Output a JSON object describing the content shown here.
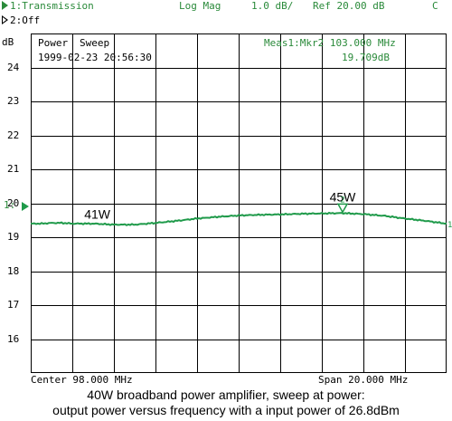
{
  "header": {
    "channel1": "1:Transmission",
    "format": "Log Mag",
    "scale": "1.0 dB/",
    "ref": "Ref  20.00 dB",
    "flag": "C",
    "channel2": "2:Off",
    "unit": "dB"
  },
  "panel": {
    "mode_power": "Power",
    "mode_sweep": "Sweep",
    "datetime": "1999-02-23 20:56:30",
    "marker_readout": "Meas1:Mkr2  103.000 MHz",
    "marker_value": "19.709dB"
  },
  "footer": {
    "center": "Center 98.000 MHz",
    "span": "Span  20.000 MHz"
  },
  "caption": {
    "line1": "40W broadband power amplifier, sweep at power:",
    "line2": "output power versus frequency with a input power of 26.8dBm"
  },
  "colors": {
    "trace": "#1f9a4a",
    "grid": "#000000",
    "header_text": "#2a8a3a"
  },
  "chart_data": {
    "type": "line",
    "xlabel": "",
    "ylabel": "dB",
    "xlim": [
      88,
      108
    ],
    "ylim": [
      15,
      25
    ],
    "yticks": [
      24,
      23,
      22,
      21,
      20,
      19,
      18,
      17,
      16
    ],
    "grid": true,
    "ref_level_label": "1:",
    "ref_level": 19.9,
    "series": [
      {
        "x": [
          88,
          88.5,
          89,
          89.5,
          90,
          91,
          92,
          93,
          94,
          95,
          96,
          97,
          98,
          99,
          100,
          101,
          102,
          103,
          104,
          105,
          106,
          107,
          108
        ],
        "y": [
          19.4,
          19.4,
          19.42,
          19.42,
          19.4,
          19.4,
          19.37,
          19.37,
          19.42,
          19.48,
          19.55,
          19.6,
          19.64,
          19.66,
          19.67,
          19.69,
          19.7,
          19.71,
          19.68,
          19.63,
          19.55,
          19.48,
          19.4
        ]
      }
    ],
    "annotations": [
      {
        "text": "41W",
        "x": 91.2,
        "y": 19.55
      },
      {
        "text": "45W",
        "x": 103.0,
        "y": 20.05
      }
    ],
    "marker": {
      "label": "2",
      "x": 103.0,
      "y": 19.71
    },
    "end_marker": {
      "label": "1",
      "y": 19.4
    }
  }
}
